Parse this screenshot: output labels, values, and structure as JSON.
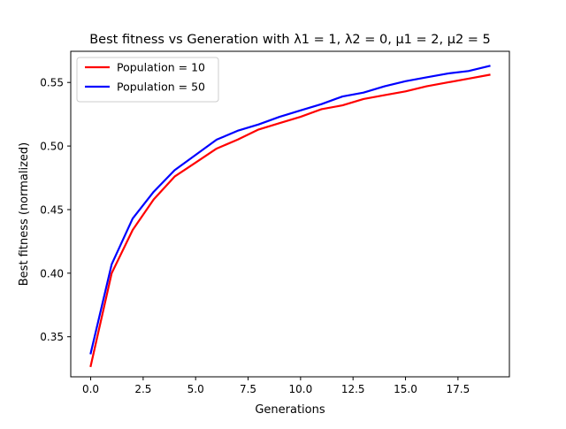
{
  "chart_data": {
    "type": "line",
    "title": "Best fitness vs Generation with λ1 = 1, λ2 = 0, μ1 = 2, μ2 = 5",
    "xlabel": "Generations",
    "ylabel": "Best fitness (normalized)",
    "xlim": [
      -0.95,
      19.95
    ],
    "ylim": [
      0.3185,
      0.5745
    ],
    "xticks": [
      0.0,
      2.5,
      5.0,
      7.5,
      10.0,
      12.5,
      15.0,
      17.5
    ],
    "xtick_labels": [
      "0.0",
      "2.5",
      "5.0",
      "7.5",
      "10.0",
      "12.5",
      "15.0",
      "17.5"
    ],
    "yticks": [
      0.35,
      0.4,
      0.45,
      0.5,
      0.55
    ],
    "ytick_labels": [
      "0.35",
      "0.40",
      "0.45",
      "0.50",
      "0.55"
    ],
    "grid": false,
    "legend_position": "top-left",
    "x": [
      0,
      1,
      2,
      3,
      4,
      5,
      6,
      7,
      8,
      9,
      10,
      11,
      12,
      13,
      14,
      15,
      16,
      17,
      18,
      19
    ],
    "series": [
      {
        "name": "Population = 10",
        "color": "#ff0000",
        "values": [
          0.327,
          0.4,
          0.434,
          0.458,
          0.476,
          0.487,
          0.498,
          0.505,
          0.513,
          0.518,
          0.523,
          0.529,
          0.532,
          0.537,
          0.54,
          0.543,
          0.547,
          0.55,
          0.553,
          0.556
        ]
      },
      {
        "name": "Population = 50",
        "color": "#0000ff",
        "values": [
          0.337,
          0.407,
          0.443,
          0.464,
          0.481,
          0.493,
          0.505,
          0.512,
          0.517,
          0.523,
          0.528,
          0.533,
          0.539,
          0.542,
          0.547,
          0.551,
          0.554,
          0.557,
          0.559,
          0.563
        ]
      }
    ]
  }
}
